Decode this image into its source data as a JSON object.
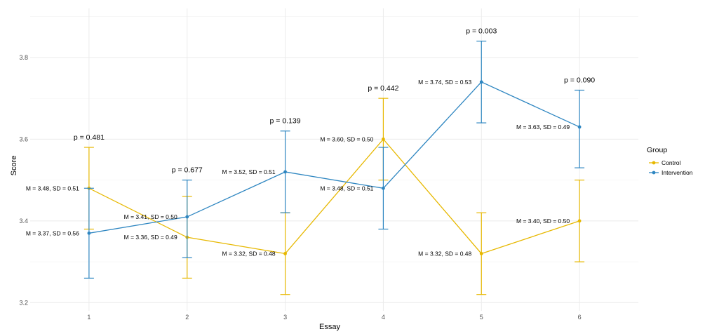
{
  "chart_data": {
    "type": "line",
    "title": "",
    "xlabel": "Essay",
    "ylabel": "Score",
    "x": [
      1,
      2,
      3,
      4,
      5,
      6
    ],
    "xlim": [
      0.4,
      6.6
    ],
    "ylim": [
      3.18,
      3.92
    ],
    "yticks": [
      3.2,
      3.4,
      3.6,
      3.8
    ],
    "ytick_labels": [
      "3.2",
      "3.4",
      "3.6",
      "3.8"
    ],
    "xtick_labels": [
      "1",
      "2",
      "3",
      "4",
      "5",
      "6"
    ],
    "grid": true,
    "legend": {
      "title": "Group",
      "position": "right"
    },
    "series": [
      {
        "name": "Control",
        "color": "#E7B800",
        "means": [
          3.48,
          3.36,
          3.32,
          3.6,
          3.32,
          3.4
        ],
        "sds": [
          0.51,
          0.49,
          0.48,
          0.5,
          0.48,
          0.5
        ],
        "err_low": [
          3.38,
          3.26,
          3.22,
          3.5,
          3.22,
          3.3
        ],
        "err_high": [
          3.58,
          3.46,
          3.42,
          3.7,
          3.42,
          3.5
        ],
        "labels": [
          "M = 3.48, SD = 0.51",
          "M = 3.36, SD = 0.49",
          "M = 3.32, SD = 0.48",
          "M = 3.60, SD = 0.50",
          "M = 3.32, SD = 0.48",
          "M = 3.40, SD = 0.50"
        ]
      },
      {
        "name": "Intervention",
        "color": "#2E86C1",
        "means": [
          3.37,
          3.41,
          3.52,
          3.48,
          3.74,
          3.63
        ],
        "sds": [
          0.56,
          0.5,
          0.51,
          0.51,
          0.53,
          0.49
        ],
        "err_low": [
          3.26,
          3.31,
          3.42,
          3.38,
          3.64,
          3.53
        ],
        "err_high": [
          3.48,
          3.5,
          3.62,
          3.58,
          3.84,
          3.72
        ],
        "labels": [
          "M = 3.37, SD = 0.56",
          "M = 3.41, SD = 0.50",
          "M = 3.52, SD = 0.51",
          "M = 3.48, SD = 0.51",
          "M = 3.74, SD = 0.53",
          "M = 3.63, SD = 0.49"
        ]
      }
    ],
    "annotations": [
      "p = 0.481",
      "p = 0.677",
      "p = 0.139",
      "p = 0.442",
      "p = 0.003",
      "p = 0.090"
    ]
  }
}
